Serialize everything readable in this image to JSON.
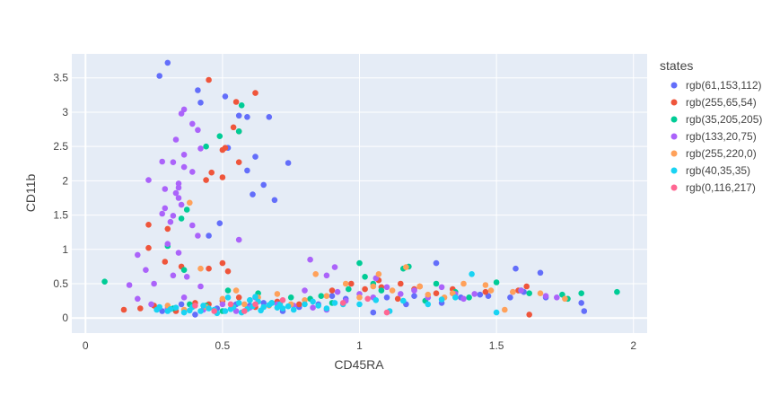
{
  "chart_data": {
    "type": "scatter",
    "title": "",
    "xlabel": "CD45RA",
    "ylabel": "CD11b",
    "xlim": [
      -0.05,
      2.05
    ],
    "ylim": [
      -0.22,
      3.85
    ],
    "x_ticks": [
      0,
      0.5,
      1,
      1.5,
      2
    ],
    "x_tick_labels": [
      "0",
      "0.5",
      "1",
      "1.5",
      "2"
    ],
    "y_ticks": [
      0,
      0.5,
      1,
      1.5,
      2,
      2.5,
      3,
      3.5
    ],
    "y_tick_labels": [
      "0",
      "0.5",
      "1",
      "1.5",
      "2",
      "2.5",
      "3",
      "3.5"
    ],
    "grid": true,
    "legend_title": "states",
    "legend_position": "right",
    "series": [
      {
        "name": "rgb(61,153,112)",
        "color": "#636efa",
        "points": [
          [
            0.27,
            3.53
          ],
          [
            0.3,
            3.72
          ],
          [
            0.41,
            3.32
          ],
          [
            0.42,
            3.14
          ],
          [
            0.51,
            3.23
          ],
          [
            0.56,
            2.95
          ],
          [
            0.59,
            2.93
          ],
          [
            0.67,
            2.93
          ],
          [
            0.52,
            2.48
          ],
          [
            0.59,
            2.15
          ],
          [
            0.62,
            2.35
          ],
          [
            0.65,
            1.94
          ],
          [
            0.61,
            1.8
          ],
          [
            0.69,
            1.72
          ],
          [
            0.74,
            2.26
          ],
          [
            0.45,
            1.2
          ],
          [
            0.49,
            1.38
          ],
          [
            1.28,
            0.8
          ],
          [
            1.57,
            0.72
          ],
          [
            1.66,
            0.66
          ],
          [
            1.81,
            0.22
          ],
          [
            1.82,
            0.1
          ],
          [
            1.34,
            0.36
          ],
          [
            1.44,
            0.34
          ],
          [
            1.55,
            0.3
          ],
          [
            1.6,
            0.38
          ],
          [
            1.05,
            0.08
          ],
          [
            0.9,
            0.32
          ],
          [
            1.17,
            0.2
          ],
          [
            0.28,
            0.1
          ],
          [
            0.35,
            0.2
          ],
          [
            0.4,
            0.05
          ],
          [
            0.48,
            0.14
          ],
          [
            0.55,
            0.2
          ],
          [
            0.6,
            0.18
          ],
          [
            0.65,
            0.22
          ],
          [
            0.72,
            0.1
          ],
          [
            0.78,
            0.16
          ],
          [
            0.85,
            0.2
          ],
          [
            0.95,
            0.28
          ],
          [
            1.1,
            0.3
          ],
          [
            1.2,
            0.32
          ],
          [
            1.3,
            0.22
          ],
          [
            1.37,
            0.3
          ],
          [
            1.47,
            0.32
          ],
          [
            1.68,
            0.3
          ]
        ]
      },
      {
        "name": "rgb(255,65,54)",
        "color": "#ef553b",
        "points": [
          [
            0.45,
            3.47
          ],
          [
            0.62,
            3.28
          ],
          [
            0.55,
            3.15
          ],
          [
            0.54,
            2.78
          ],
          [
            0.56,
            2.72
          ],
          [
            0.51,
            2.48
          ],
          [
            0.5,
            2.45
          ],
          [
            0.56,
            2.27
          ],
          [
            0.46,
            2.12
          ],
          [
            0.44,
            2.01
          ],
          [
            0.5,
            2.05
          ],
          [
            0.23,
            1.36
          ],
          [
            0.3,
            1.3
          ],
          [
            0.23,
            1.02
          ],
          [
            0.29,
            0.82
          ],
          [
            0.35,
            0.75
          ],
          [
            0.45,
            0.72
          ],
          [
            0.5,
            0.8
          ],
          [
            0.52,
            0.68
          ],
          [
            1.07,
            0.55
          ],
          [
            1.08,
            0.45
          ],
          [
            1.2,
            0.42
          ],
          [
            1.28,
            0.36
          ],
          [
            1.14,
            0.28
          ],
          [
            1.62,
            0.05
          ],
          [
            1.61,
            0.46
          ],
          [
            0.14,
            0.12
          ],
          [
            0.2,
            0.14
          ],
          [
            0.25,
            0.18
          ],
          [
            0.33,
            0.1
          ],
          [
            0.4,
            0.22
          ],
          [
            0.45,
            0.2
          ],
          [
            0.5,
            0.25
          ],
          [
            0.56,
            0.3
          ],
          [
            0.62,
            0.16
          ],
          [
            0.7,
            0.24
          ],
          [
            0.78,
            0.2
          ],
          [
            0.9,
            0.4
          ],
          [
            0.97,
            0.5
          ],
          [
            1.02,
            0.42
          ],
          [
            1.15,
            0.5
          ],
          [
            1.22,
            0.46
          ],
          [
            1.34,
            0.42
          ],
          [
            1.46,
            0.38
          ],
          [
            1.58,
            0.4
          ]
        ]
      },
      {
        "name": "rgb(35,205,205)",
        "color": "#00cc96",
        "points": [
          [
            0.57,
            3.1
          ],
          [
            0.56,
            2.72
          ],
          [
            0.49,
            2.65
          ],
          [
            0.44,
            2.5
          ],
          [
            0.37,
            1.58
          ],
          [
            0.35,
            1.45
          ],
          [
            0.3,
            1.05
          ],
          [
            0.36,
            0.7
          ],
          [
            0.07,
            0.53
          ],
          [
            0.52,
            0.4
          ],
          [
            0.63,
            0.36
          ],
          [
            0.86,
            0.32
          ],
          [
            0.96,
            0.42
          ],
          [
            1.0,
            0.8
          ],
          [
            1.02,
            0.6
          ],
          [
            1.05,
            0.5
          ],
          [
            1.16,
            0.72
          ],
          [
            1.18,
            0.75
          ],
          [
            1.28,
            0.5
          ],
          [
            1.35,
            0.38
          ],
          [
            1.5,
            0.52
          ],
          [
            1.59,
            0.4
          ],
          [
            1.74,
            0.34
          ],
          [
            1.76,
            0.28
          ],
          [
            1.81,
            0.36
          ],
          [
            1.94,
            0.38
          ],
          [
            0.32,
            0.14
          ],
          [
            0.38,
            0.2
          ],
          [
            0.44,
            0.18
          ],
          [
            0.5,
            0.1
          ],
          [
            0.6,
            0.26
          ],
          [
            0.68,
            0.22
          ],
          [
            0.75,
            0.3
          ],
          [
            0.82,
            0.28
          ],
          [
            0.9,
            0.22
          ],
          [
            1.08,
            0.4
          ],
          [
            1.24,
            0.25
          ],
          [
            1.4,
            0.3
          ],
          [
            1.62,
            0.36
          ]
        ]
      },
      {
        "name": "rgb(133,20,75)",
        "color": "#ab63fa",
        "points": [
          [
            0.36,
            3.04
          ],
          [
            0.35,
            2.98
          ],
          [
            0.39,
            2.83
          ],
          [
            0.33,
            2.6
          ],
          [
            0.41,
            2.74
          ],
          [
            0.42,
            2.47
          ],
          [
            0.36,
            2.38
          ],
          [
            0.28,
            2.28
          ],
          [
            0.32,
            2.27
          ],
          [
            0.36,
            2.2
          ],
          [
            0.39,
            2.13
          ],
          [
            0.23,
            2.01
          ],
          [
            0.34,
            1.96
          ],
          [
            0.34,
            1.9
          ],
          [
            0.29,
            1.88
          ],
          [
            0.33,
            1.82
          ],
          [
            0.34,
            1.75
          ],
          [
            0.35,
            1.65
          ],
          [
            0.29,
            1.6
          ],
          [
            0.31,
            1.4
          ],
          [
            0.28,
            1.52
          ],
          [
            0.32,
            1.49
          ],
          [
            0.39,
            1.35
          ],
          [
            0.41,
            1.2
          ],
          [
            0.56,
            1.14
          ],
          [
            0.3,
            1.08
          ],
          [
            0.34,
            0.95
          ],
          [
            0.19,
            0.92
          ],
          [
            0.22,
            0.7
          ],
          [
            0.25,
            0.5
          ],
          [
            0.32,
            0.62
          ],
          [
            0.37,
            0.6
          ],
          [
            0.42,
            0.46
          ],
          [
            0.16,
            0.48
          ],
          [
            0.19,
            0.28
          ],
          [
            0.24,
            0.2
          ],
          [
            0.3,
            0.14
          ],
          [
            0.36,
            0.3
          ],
          [
            0.43,
            0.12
          ],
          [
            0.5,
            0.2
          ],
          [
            0.55,
            0.1
          ],
          [
            0.62,
            0.3
          ],
          [
            0.7,
            0.2
          ],
          [
            0.8,
            0.4
          ],
          [
            0.82,
            0.85
          ],
          [
            0.88,
            0.62
          ],
          [
            0.92,
            0.38
          ],
          [
            0.95,
            0.25
          ],
          [
            1.0,
            0.35
          ],
          [
            1.05,
            0.3
          ],
          [
            1.1,
            0.45
          ],
          [
            1.15,
            0.35
          ],
          [
            1.2,
            0.4
          ],
          [
            1.25,
            0.3
          ],
          [
            1.3,
            0.45
          ],
          [
            1.35,
            0.35
          ],
          [
            1.38,
            0.28
          ],
          [
            1.42,
            0.35
          ],
          [
            1.56,
            0.38
          ],
          [
            1.59,
            0.4
          ],
          [
            1.68,
            0.32
          ],
          [
            1.72,
            0.3
          ],
          [
            0.91,
            0.74
          ],
          [
            1.06,
            0.58
          ],
          [
            0.83,
            0.15
          ],
          [
            0.88,
            0.12
          ],
          [
            0.76,
            0.18
          ],
          [
            0.6,
            0.15
          ]
        ]
      },
      {
        "name": "rgb(255,220,0)",
        "color": "#ffa15a",
        "points": [
          [
            0.38,
            1.68
          ],
          [
            0.42,
            0.72
          ],
          [
            0.55,
            0.4
          ],
          [
            0.63,
            0.3
          ],
          [
            0.75,
            0.2
          ],
          [
            0.84,
            0.64
          ],
          [
            0.95,
            0.5
          ],
          [
            1.05,
            0.46
          ],
          [
            1.07,
            0.64
          ],
          [
            1.17,
            0.74
          ],
          [
            1.25,
            0.34
          ],
          [
            1.31,
            0.3
          ],
          [
            1.38,
            0.5
          ],
          [
            1.46,
            0.48
          ],
          [
            1.53,
            0.12
          ],
          [
            1.56,
            0.38
          ],
          [
            1.75,
            0.28
          ],
          [
            0.3,
            0.18
          ],
          [
            0.36,
            0.12
          ],
          [
            0.44,
            0.16
          ],
          [
            0.5,
            0.28
          ],
          [
            0.58,
            0.2
          ],
          [
            0.67,
            0.18
          ],
          [
            0.7,
            0.35
          ],
          [
            0.8,
            0.26
          ],
          [
            0.88,
            0.32
          ],
          [
            1.0,
            0.3
          ],
          [
            1.12,
            0.4
          ],
          [
            1.22,
            0.46
          ],
          [
            1.34,
            0.36
          ],
          [
            1.48,
            0.4
          ],
          [
            1.66,
            0.36
          ]
        ]
      },
      {
        "name": "rgb(40,35,35)",
        "color": "#19d3f3",
        "points": [
          [
            0.6,
            0.26
          ],
          [
            0.63,
            0.24
          ],
          [
            0.67,
            0.19
          ],
          [
            0.71,
            0.2
          ],
          [
            0.8,
            0.2
          ],
          [
            0.85,
            0.18
          ],
          [
            0.91,
            0.22
          ],
          [
            1.0,
            0.2
          ],
          [
            1.11,
            0.1
          ],
          [
            1.25,
            0.2
          ],
          [
            1.35,
            0.3
          ],
          [
            1.41,
            0.64
          ],
          [
            1.5,
            0.08
          ],
          [
            0.26,
            0.12
          ],
          [
            0.3,
            0.1
          ],
          [
            0.33,
            0.15
          ],
          [
            0.36,
            0.08
          ],
          [
            0.39,
            0.16
          ],
          [
            0.42,
            0.1
          ],
          [
            0.45,
            0.14
          ],
          [
            0.48,
            0.07
          ],
          [
            0.51,
            0.1
          ],
          [
            0.54,
            0.16
          ],
          [
            0.57,
            0.08
          ],
          [
            0.59,
            0.13
          ],
          [
            0.65,
            0.16
          ],
          [
            0.68,
            0.22
          ],
          [
            0.72,
            0.14
          ],
          [
            0.76,
            0.12
          ],
          [
            0.83,
            0.24
          ],
          [
            0.88,
            0.14
          ],
          [
            0.94,
            0.2
          ],
          [
            1.06,
            0.26
          ],
          [
            1.16,
            0.25
          ],
          [
            1.3,
            0.27
          ],
          [
            0.27,
            0.16
          ],
          [
            0.31,
            0.13
          ],
          [
            0.38,
            0.11
          ],
          [
            0.43,
            0.18
          ],
          [
            0.47,
            0.12
          ],
          [
            0.53,
            0.13
          ],
          [
            0.61,
            0.17
          ],
          [
            0.64,
            0.11
          ],
          [
            0.7,
            0.15
          ],
          [
            0.74,
            0.17
          ],
          [
            0.52,
            0.3
          ],
          [
            0.62,
            0.31
          ],
          [
            0.56,
            0.22
          ]
        ]
      },
      {
        "name": "rgb(0,116,217)",
        "color": "#ff6692",
        "points": [
          [
            0.4,
            0.18
          ],
          [
            0.47,
            0.1
          ],
          [
            0.53,
            0.2
          ],
          [
            0.58,
            0.1
          ],
          [
            0.62,
            0.2
          ],
          [
            0.72,
            0.26
          ],
          [
            0.94,
            0.22
          ],
          [
            1.03,
            0.28
          ],
          [
            1.1,
            0.08
          ]
        ]
      }
    ]
  }
}
